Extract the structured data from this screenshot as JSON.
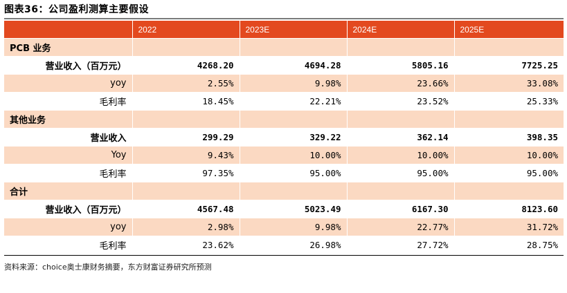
{
  "title": "图表36：公司盈利测算主要假设",
  "columns": [
    "",
    "2022",
    "2023E",
    "2024E",
    "2025E"
  ],
  "sections": [
    {
      "name": "PCB 业务",
      "rows": [
        {
          "label": "营业收入（百万元）",
          "values": [
            "4268.20",
            "4694.28",
            "5805.16",
            "7725.25"
          ],
          "bold": true,
          "shade": false
        },
        {
          "label": "yoy",
          "values": [
            "2.55%",
            "9.98%",
            "23.66%",
            "33.08%"
          ],
          "bold": false,
          "shade": true
        },
        {
          "label": "毛利率",
          "values": [
            "18.45%",
            "22.21%",
            "23.52%",
            "25.33%"
          ],
          "bold": false,
          "shade": false
        }
      ]
    },
    {
      "name": "其他业务",
      "rows": [
        {
          "label": "营业收入",
          "values": [
            "299.29",
            "329.22",
            "362.14",
            "398.35"
          ],
          "bold": true,
          "shade": false
        },
        {
          "label": "Yoy",
          "values": [
            "9.43%",
            "10.00%",
            "10.00%",
            "10.00%"
          ],
          "bold": false,
          "shade": true
        },
        {
          "label": "毛利率",
          "values": [
            "97.35%",
            "95.00%",
            "95.00%",
            "95.00%"
          ],
          "bold": false,
          "shade": false
        }
      ]
    },
    {
      "name": "合计",
      "rows": [
        {
          "label": "营业收入（百万元）",
          "values": [
            "4567.48",
            "5023.49",
            "6167.30",
            "8123.60"
          ],
          "bold": true,
          "shade": false
        },
        {
          "label": "yoy",
          "values": [
            "2.98%",
            "9.98%",
            "22.77%",
            "31.72%"
          ],
          "bold": false,
          "shade": true
        },
        {
          "label": "毛利率",
          "values": [
            "23.62%",
            "26.98%",
            "27.72%",
            "28.75%"
          ],
          "bold": false,
          "shade": false
        }
      ]
    }
  ],
  "source": "资料来源：choice奥士康财务摘要，东方财富证券研究所预测",
  "colors": {
    "header": "#e3491f",
    "shade": "#fbd9c2"
  }
}
